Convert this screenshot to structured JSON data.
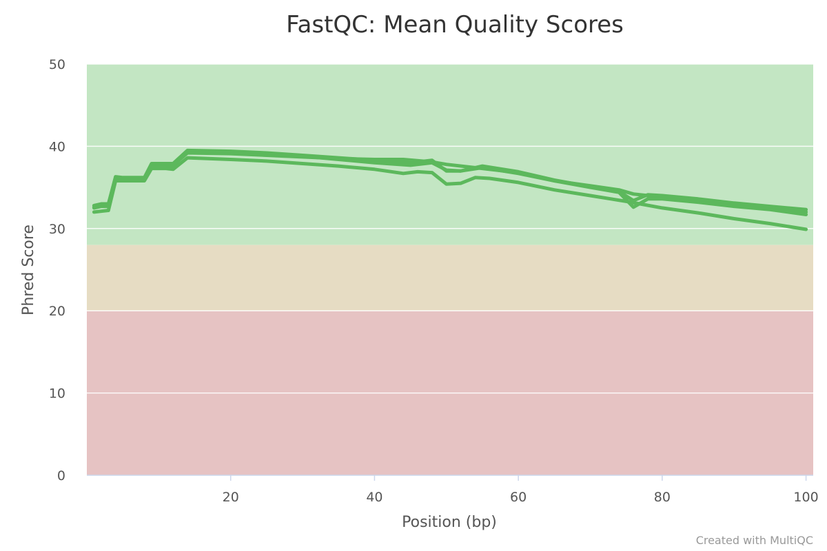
{
  "chart_data": {
    "type": "line",
    "title": "FastQC: Mean Quality Scores",
    "xlabel": "Position (bp)",
    "ylabel": "Phred Score",
    "xlim": [
      0,
      101
    ],
    "ylim": [
      0,
      50
    ],
    "x_ticks": [
      20,
      40,
      60,
      80,
      100
    ],
    "y_ticks": [
      0,
      10,
      20,
      30,
      40,
      50
    ],
    "grid": true,
    "legend": "none",
    "bands": [
      {
        "from": 28,
        "to": 50,
        "color": "#c3e6c3"
      },
      {
        "from": 20,
        "to": 28,
        "color": "#e6dcc3"
      },
      {
        "from": 0,
        "to": 20,
        "color": "#e6c3c3"
      }
    ],
    "line_color": "#5cb85c",
    "series": [
      {
        "points": [
          [
            1,
            32.8
          ],
          [
            2,
            33.0
          ],
          [
            3,
            33.0
          ],
          [
            4,
            36.3
          ],
          [
            5,
            36.2
          ],
          [
            6,
            36.2
          ],
          [
            7,
            36.2
          ],
          [
            8,
            36.2
          ],
          [
            9,
            37.9
          ],
          [
            11,
            37.9
          ],
          [
            12,
            37.9
          ],
          [
            14,
            39.5
          ],
          [
            20,
            39.4
          ],
          [
            25,
            39.2
          ],
          [
            30,
            38.9
          ],
          [
            35,
            38.6
          ],
          [
            40,
            38.3
          ],
          [
            45,
            38.0
          ],
          [
            48,
            38.3
          ],
          [
            50,
            37.0
          ],
          [
            52,
            37.0
          ],
          [
            55,
            37.6
          ],
          [
            60,
            36.9
          ],
          [
            65,
            35.9
          ],
          [
            70,
            35.1
          ],
          [
            74,
            34.5
          ],
          [
            76,
            33.4
          ],
          [
            78,
            34.1
          ],
          [
            80,
            34.0
          ],
          [
            85,
            33.6
          ],
          [
            90,
            33.1
          ],
          [
            95,
            32.7
          ],
          [
            100,
            32.3
          ]
        ]
      },
      {
        "points": [
          [
            1,
            32.5
          ],
          [
            2,
            32.7
          ],
          [
            3,
            32.7
          ],
          [
            4,
            36.1
          ],
          [
            5,
            36.0
          ],
          [
            6,
            36.0
          ],
          [
            7,
            36.0
          ],
          [
            8,
            36.0
          ],
          [
            9,
            37.7
          ],
          [
            11,
            37.7
          ],
          [
            12,
            37.6
          ],
          [
            14,
            39.4
          ],
          [
            20,
            39.3
          ],
          [
            25,
            39.1
          ],
          [
            30,
            38.8
          ],
          [
            35,
            38.4
          ],
          [
            40,
            38.0
          ],
          [
            45,
            37.7
          ],
          [
            48,
            38.0
          ],
          [
            50,
            37.1
          ],
          [
            52,
            37.0
          ],
          [
            55,
            37.4
          ],
          [
            60,
            36.7
          ],
          [
            65,
            35.8
          ],
          [
            70,
            35.0
          ],
          [
            74,
            34.4
          ],
          [
            76,
            32.6
          ],
          [
            78,
            33.6
          ],
          [
            80,
            33.6
          ],
          [
            85,
            33.2
          ],
          [
            90,
            32.7
          ],
          [
            95,
            32.3
          ],
          [
            100,
            31.7
          ]
        ]
      },
      {
        "points": [
          [
            1,
            32.0
          ],
          [
            2,
            32.1
          ],
          [
            3,
            32.2
          ],
          [
            4,
            35.8
          ],
          [
            5,
            35.8
          ],
          [
            6,
            35.8
          ],
          [
            7,
            35.8
          ],
          [
            8,
            35.8
          ],
          [
            9,
            37.3
          ],
          [
            11,
            37.3
          ],
          [
            12,
            37.2
          ],
          [
            14,
            38.6
          ],
          [
            20,
            38.4
          ],
          [
            25,
            38.2
          ],
          [
            30,
            37.9
          ],
          [
            35,
            37.6
          ],
          [
            40,
            37.2
          ],
          [
            44,
            36.7
          ],
          [
            46,
            36.9
          ],
          [
            48,
            36.8
          ],
          [
            50,
            35.4
          ],
          [
            52,
            35.5
          ],
          [
            54,
            36.2
          ],
          [
            56,
            36.1
          ],
          [
            60,
            35.6
          ],
          [
            65,
            34.7
          ],
          [
            70,
            34.0
          ],
          [
            75,
            33.3
          ],
          [
            80,
            32.5
          ],
          [
            85,
            31.9
          ],
          [
            90,
            31.2
          ],
          [
            95,
            30.6
          ],
          [
            100,
            29.9
          ]
        ]
      },
      {
        "points": [
          [
            1,
            32.6
          ],
          [
            2,
            32.8
          ],
          [
            3,
            32.8
          ],
          [
            4,
            36.2
          ],
          [
            5,
            36.1
          ],
          [
            6,
            36.1
          ],
          [
            7,
            36.1
          ],
          [
            8,
            36.1
          ],
          [
            9,
            37.8
          ],
          [
            11,
            37.8
          ],
          [
            12,
            37.7
          ],
          [
            14,
            39.2
          ],
          [
            20,
            39.1
          ],
          [
            25,
            38.9
          ],
          [
            30,
            38.7
          ],
          [
            35,
            38.5
          ],
          [
            40,
            38.4
          ],
          [
            44,
            38.4
          ],
          [
            48,
            38.1
          ],
          [
            50,
            37.8
          ],
          [
            55,
            37.3
          ],
          [
            60,
            36.8
          ],
          [
            65,
            35.8
          ],
          [
            70,
            35.2
          ],
          [
            74,
            34.7
          ],
          [
            76,
            34.2
          ],
          [
            78,
            34.0
          ],
          [
            80,
            33.8
          ],
          [
            85,
            33.5
          ],
          [
            90,
            33.0
          ],
          [
            95,
            32.6
          ],
          [
            100,
            32.0
          ]
        ]
      }
    ],
    "credits": "Created with MultiQC"
  }
}
